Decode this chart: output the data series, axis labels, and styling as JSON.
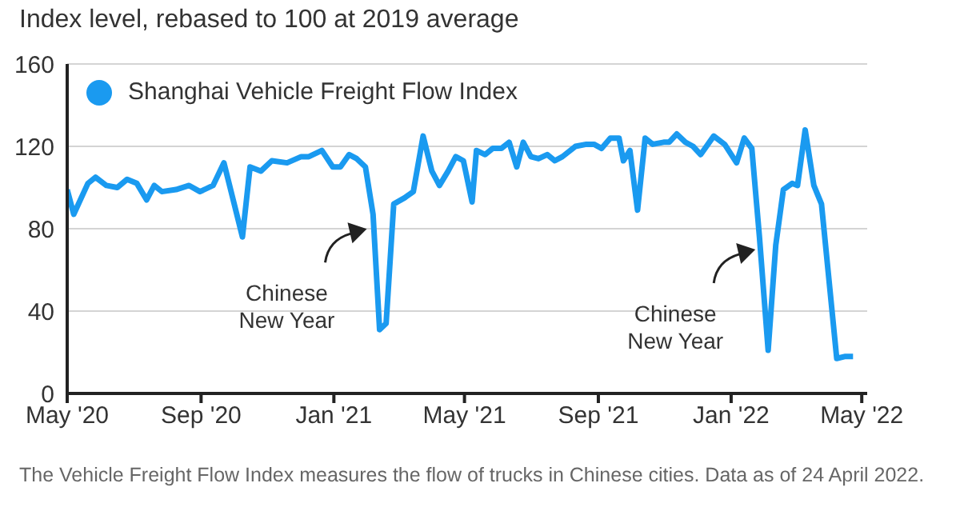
{
  "chart_data": {
    "type": "line",
    "title": "Index level, rebased to 100 at 2019 average",
    "x": [
      "2020-05-01",
      "2020-05-07",
      "2020-05-20",
      "2020-05-27",
      "2020-06-06",
      "2020-06-16",
      "2020-06-25",
      "2020-07-04",
      "2020-07-13",
      "2020-07-20",
      "2020-07-27",
      "2020-08-09",
      "2020-08-21",
      "2020-08-31",
      "2020-09-12",
      "2020-09-22",
      "2020-10-09",
      "2020-10-16",
      "2020-10-26",
      "2020-11-05",
      "2020-11-19",
      "2020-12-02",
      "2020-12-09",
      "2020-12-21",
      "2020-12-31",
      "2021-01-07",
      "2021-01-15",
      "2021-01-22",
      "2021-01-30",
      "2021-02-06",
      "2021-02-12",
      "2021-02-18",
      "2021-02-25",
      "2021-03-07",
      "2021-03-15",
      "2021-03-24",
      "2021-04-01",
      "2021-04-08",
      "2021-04-16",
      "2021-04-23",
      "2021-04-30",
      "2021-05-08",
      "2021-05-12",
      "2021-05-20",
      "2021-05-27",
      "2021-06-04",
      "2021-06-11",
      "2021-06-18",
      "2021-06-24",
      "2021-07-01",
      "2021-07-08",
      "2021-07-16",
      "2021-07-23",
      "2021-07-30",
      "2021-08-11",
      "2021-08-21",
      "2021-08-28",
      "2021-09-04",
      "2021-09-12",
      "2021-09-20",
      "2021-09-24",
      "2021-09-30",
      "2021-10-07",
      "2021-10-14",
      "2021-10-21",
      "2021-10-31",
      "2021-11-05",
      "2021-11-12",
      "2021-11-20",
      "2021-11-27",
      "2021-12-04",
      "2021-12-16",
      "2021-12-26",
      "2022-01-06",
      "2022-01-13",
      "2022-01-20",
      "2022-01-27",
      "2022-02-04",
      "2022-02-11",
      "2022-02-18",
      "2022-02-26",
      "2022-03-03",
      "2022-03-10",
      "2022-03-18",
      "2022-03-25",
      "2022-04-08",
      "2022-04-16",
      "2022-04-23"
    ],
    "series": [
      {
        "name": "Shanghai Vehicle Freight Flow Index",
        "color": "#1a9af0",
        "values": [
          99,
          87,
          102,
          105,
          101,
          100,
          104,
          102,
          94,
          101,
          98,
          99,
          101,
          98,
          101,
          112,
          76,
          110,
          108,
          113,
          112,
          115,
          115,
          118,
          110,
          110,
          116,
          114,
          110,
          87,
          31,
          34,
          92,
          95,
          98,
          125,
          108,
          101,
          108,
          115,
          113,
          93,
          118,
          116,
          119,
          119,
          122,
          110,
          122,
          115,
          114,
          116,
          113,
          115,
          120,
          121,
          121,
          119,
          124,
          124,
          113,
          118,
          89,
          124,
          121,
          122,
          122,
          126,
          122,
          120,
          116,
          125,
          121,
          112,
          124,
          119,
          76,
          21,
          72,
          99,
          102,
          101,
          128,
          101,
          92,
          17,
          18,
          18
        ]
      }
    ],
    "xlim": [
      "2020-05-01",
      "2022-05-06"
    ],
    "xticks": [
      {
        "value": "2020-05-01",
        "label": "May '20"
      },
      {
        "value": "2020-09-01",
        "label": "Sep '20"
      },
      {
        "value": "2021-01-01",
        "label": "Jan '21"
      },
      {
        "value": "2021-05-01",
        "label": "May '21"
      },
      {
        "value": "2021-09-01",
        "label": "Sep '21"
      },
      {
        "value": "2022-01-01",
        "label": "Jan '22"
      },
      {
        "value": "2022-05-01",
        "label": "May '22"
      }
    ],
    "ylim": [
      0,
      160
    ],
    "yticks": [
      0,
      40,
      80,
      120,
      160
    ],
    "grid": "y",
    "legend": "top left",
    "marker": "none",
    "line_style": "solid",
    "annotations": [
      {
        "text": "Chinese New Year",
        "x": "2021-02-12",
        "y": 31
      },
      {
        "text": "Chinese New Year",
        "x": "2022-02-04",
        "y": 21
      },
      "The Vehicle Freight Flow Index measures the flow of trucks in Chinese cities. Data as of 24 April 2022."
    ]
  }
}
